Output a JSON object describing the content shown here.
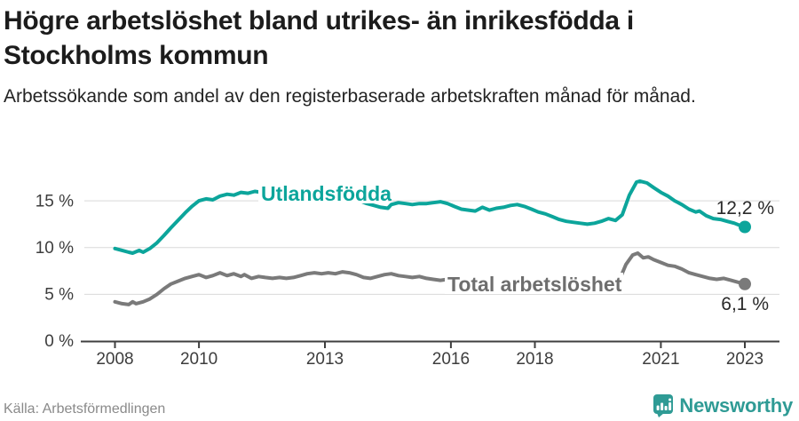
{
  "header": {
    "title": "Högre arbetslöshet bland utrikes- än inrikesfödda i Stockholms kommun",
    "subtitle": "Arbetssökande som andel av den registerbaserade arbetskraften månad för månad."
  },
  "footer": {
    "source": "Källa: Arbetsförmedlingen",
    "brand": "Newsworthy"
  },
  "colors": {
    "accent_teal": "#0ca59b",
    "series_gray": "#7a7a7a",
    "brand_teal": "#2f9b95",
    "grid": "#d9d9d9",
    "axis": "#3f3f3f"
  },
  "chart_data": {
    "type": "line",
    "title": "Högre arbetslöshet bland utrikes- än inrikesfödda i Stockholms kommun",
    "subtitle": "Arbetssökande som andel av den registerbaserade arbetskraften månad för månad.",
    "xlabel": "",
    "ylabel": "%",
    "xlim": [
      2007.25,
      2023.85
    ],
    "ylim": [
      0,
      18
    ],
    "grid": "horizontal",
    "legend_position": "inline-labels",
    "x_ticks": [
      "2008",
      "2010",
      "2013",
      "2016",
      "2018",
      "2021",
      "2023"
    ],
    "x_tick_years": [
      2008,
      2010,
      2013,
      2016,
      2018,
      2021,
      2023
    ],
    "y_ticks": [
      "15 %",
      "10 %",
      "5 %",
      "0 %"
    ],
    "y_tick_values": [
      15,
      10,
      5,
      0
    ],
    "series": [
      {
        "name": "Utlandsfödda",
        "color": "#0ca59b",
        "label_color": "#0ca59b",
        "end_label": "12,2 %",
        "end_value": 12.2,
        "points": [
          [
            2008.0,
            9.9
          ],
          [
            2008.17,
            9.7
          ],
          [
            2008.33,
            9.5
          ],
          [
            2008.42,
            9.4
          ],
          [
            2008.58,
            9.7
          ],
          [
            2008.67,
            9.5
          ],
          [
            2008.83,
            9.9
          ],
          [
            2009.0,
            10.5
          ],
          [
            2009.17,
            11.3
          ],
          [
            2009.33,
            12.1
          ],
          [
            2009.5,
            12.9
          ],
          [
            2009.67,
            13.7
          ],
          [
            2009.83,
            14.4
          ],
          [
            2010.0,
            15.0
          ],
          [
            2010.17,
            15.2
          ],
          [
            2010.33,
            15.1
          ],
          [
            2010.5,
            15.5
          ],
          [
            2010.67,
            15.7
          ],
          [
            2010.83,
            15.6
          ],
          [
            2011.0,
            15.9
          ],
          [
            2011.17,
            15.8
          ],
          [
            2011.33,
            16.0
          ],
          [
            2011.5,
            15.9
          ],
          [
            2011.67,
            16.1
          ],
          [
            2011.83,
            15.9
          ],
          [
            2012.0,
            16.0
          ],
          [
            2012.17,
            16.1
          ],
          [
            2012.33,
            15.9
          ],
          [
            2012.5,
            16.0
          ],
          [
            2012.67,
            15.8
          ],
          [
            2012.83,
            15.9
          ],
          [
            2013.0,
            15.7
          ],
          [
            2013.17,
            15.6
          ],
          [
            2013.33,
            15.4
          ],
          [
            2013.5,
            15.5
          ],
          [
            2013.67,
            15.2
          ],
          [
            2013.83,
            15.0
          ],
          [
            2014.0,
            14.7
          ],
          [
            2014.17,
            14.5
          ],
          [
            2014.33,
            14.3
          ],
          [
            2014.5,
            14.2
          ],
          [
            2014.58,
            14.6
          ],
          [
            2014.75,
            14.8
          ],
          [
            2014.92,
            14.7
          ],
          [
            2015.08,
            14.6
          ],
          [
            2015.25,
            14.7
          ],
          [
            2015.42,
            14.7
          ],
          [
            2015.58,
            14.8
          ],
          [
            2015.75,
            14.9
          ],
          [
            2015.92,
            14.7
          ],
          [
            2016.08,
            14.4
          ],
          [
            2016.25,
            14.1
          ],
          [
            2016.42,
            14.0
          ],
          [
            2016.58,
            13.9
          ],
          [
            2016.75,
            14.3
          ],
          [
            2016.92,
            14.0
          ],
          [
            2017.08,
            14.2
          ],
          [
            2017.25,
            14.3
          ],
          [
            2017.42,
            14.5
          ],
          [
            2017.58,
            14.6
          ],
          [
            2017.75,
            14.4
          ],
          [
            2017.92,
            14.1
          ],
          [
            2018.08,
            13.8
          ],
          [
            2018.25,
            13.6
          ],
          [
            2018.42,
            13.3
          ],
          [
            2018.58,
            13.0
          ],
          [
            2018.75,
            12.8
          ],
          [
            2018.92,
            12.7
          ],
          [
            2019.08,
            12.6
          ],
          [
            2019.25,
            12.5
          ],
          [
            2019.42,
            12.6
          ],
          [
            2019.58,
            12.8
          ],
          [
            2019.75,
            13.1
          ],
          [
            2019.92,
            12.9
          ],
          [
            2020.08,
            13.5
          ],
          [
            2020.25,
            15.6
          ],
          [
            2020.42,
            17.0
          ],
          [
            2020.5,
            17.1
          ],
          [
            2020.67,
            16.9
          ],
          [
            2020.83,
            16.4
          ],
          [
            2021.0,
            15.9
          ],
          [
            2021.17,
            15.5
          ],
          [
            2021.33,
            15.0
          ],
          [
            2021.5,
            14.6
          ],
          [
            2021.67,
            14.1
          ],
          [
            2021.83,
            13.8
          ],
          [
            2021.92,
            13.9
          ],
          [
            2022.08,
            13.4
          ],
          [
            2022.25,
            13.1
          ],
          [
            2022.42,
            13.0
          ],
          [
            2022.58,
            12.8
          ],
          [
            2022.75,
            12.6
          ],
          [
            2022.92,
            12.3
          ],
          [
            2023.0,
            12.2
          ]
        ]
      },
      {
        "name": "Total arbetslöshet",
        "color": "#7a7a7a",
        "label_color": "#6e6e6e",
        "end_label": "6,1 %",
        "end_value": 6.1,
        "points": [
          [
            2008.0,
            4.2
          ],
          [
            2008.17,
            4.0
          ],
          [
            2008.33,
            3.9
          ],
          [
            2008.42,
            4.2
          ],
          [
            2008.5,
            4.0
          ],
          [
            2008.67,
            4.2
          ],
          [
            2008.83,
            4.5
          ],
          [
            2009.0,
            5.0
          ],
          [
            2009.17,
            5.6
          ],
          [
            2009.33,
            6.1
          ],
          [
            2009.5,
            6.4
          ],
          [
            2009.67,
            6.7
          ],
          [
            2009.83,
            6.9
          ],
          [
            2010.0,
            7.1
          ],
          [
            2010.17,
            6.8
          ],
          [
            2010.33,
            7.0
          ],
          [
            2010.5,
            7.3
          ],
          [
            2010.67,
            7.0
          ],
          [
            2010.83,
            7.2
          ],
          [
            2011.0,
            6.9
          ],
          [
            2011.08,
            7.1
          ],
          [
            2011.25,
            6.7
          ],
          [
            2011.42,
            6.9
          ],
          [
            2011.58,
            6.8
          ],
          [
            2011.75,
            6.7
          ],
          [
            2011.92,
            6.8
          ],
          [
            2012.08,
            6.7
          ],
          [
            2012.25,
            6.8
          ],
          [
            2012.42,
            7.0
          ],
          [
            2012.58,
            7.2
          ],
          [
            2012.75,
            7.3
          ],
          [
            2012.92,
            7.2
          ],
          [
            2013.08,
            7.3
          ],
          [
            2013.25,
            7.2
          ],
          [
            2013.42,
            7.4
          ],
          [
            2013.58,
            7.3
          ],
          [
            2013.75,
            7.1
          ],
          [
            2013.92,
            6.8
          ],
          [
            2014.08,
            6.7
          ],
          [
            2014.25,
            6.9
          ],
          [
            2014.42,
            7.1
          ],
          [
            2014.58,
            7.2
          ],
          [
            2014.75,
            7.0
          ],
          [
            2014.92,
            6.9
          ],
          [
            2015.08,
            6.8
          ],
          [
            2015.25,
            6.9
          ],
          [
            2015.42,
            6.7
          ],
          [
            2015.58,
            6.6
          ],
          [
            2015.75,
            6.5
          ],
          [
            2015.92,
            6.6
          ],
          [
            2016.08,
            6.4
          ],
          [
            2016.25,
            6.4
          ],
          [
            2016.5,
            6.3
          ],
          [
            2016.75,
            6.4
          ],
          [
            2017.0,
            6.3
          ],
          [
            2017.25,
            6.4
          ],
          [
            2017.5,
            6.3
          ],
          [
            2017.75,
            6.2
          ],
          [
            2018.0,
            6.1
          ],
          [
            2018.25,
            6.0
          ],
          [
            2018.5,
            6.0
          ],
          [
            2018.75,
            5.9
          ],
          [
            2019.0,
            6.0
          ],
          [
            2019.25,
            5.9
          ],
          [
            2019.5,
            6.0
          ],
          [
            2019.75,
            6.1
          ],
          [
            2020.0,
            6.4
          ],
          [
            2020.17,
            8.2
          ],
          [
            2020.33,
            9.2
          ],
          [
            2020.45,
            9.4
          ],
          [
            2020.58,
            8.9
          ],
          [
            2020.7,
            9.0
          ],
          [
            2020.83,
            8.7
          ],
          [
            2021.0,
            8.4
          ],
          [
            2021.17,
            8.1
          ],
          [
            2021.33,
            8.0
          ],
          [
            2021.5,
            7.7
          ],
          [
            2021.67,
            7.3
          ],
          [
            2021.83,
            7.1
          ],
          [
            2022.0,
            6.9
          ],
          [
            2022.17,
            6.7
          ],
          [
            2022.33,
            6.6
          ],
          [
            2022.5,
            6.7
          ],
          [
            2022.67,
            6.5
          ],
          [
            2022.83,
            6.3
          ],
          [
            2023.0,
            6.1
          ]
        ]
      }
    ]
  }
}
